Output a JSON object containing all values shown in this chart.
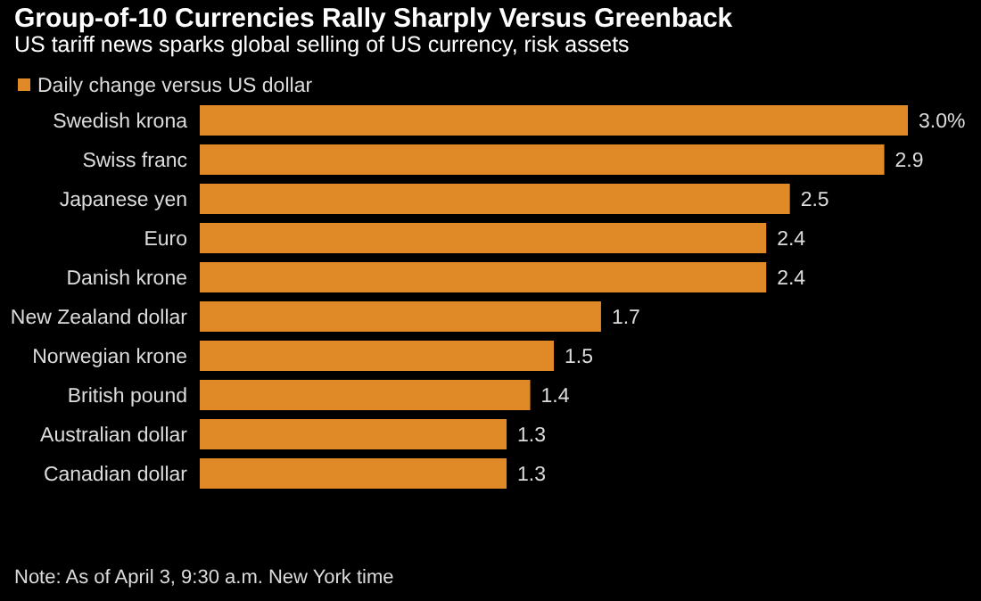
{
  "chart_data": {
    "type": "bar",
    "orientation": "horizontal",
    "title": "Group-of-10 Currencies Rally Sharply Versus Greenback",
    "subtitle": "US tariff news sparks global selling of US currency, risk assets",
    "categories": [
      "Swedish krona",
      "Swiss franc",
      "Japanese yen",
      "Euro",
      "Danish krone",
      "New Zealand dollar",
      "Norwegian krone",
      "British pound",
      "Australian dollar",
      "Canadian dollar"
    ],
    "series": [
      {
        "name": "Daily change versus US dollar",
        "color": "#df8a26",
        "values": [
          3.0,
          2.9,
          2.5,
          2.4,
          2.4,
          1.7,
          1.5,
          1.4,
          1.3,
          1.3
        ],
        "value_labels": [
          "3.0%",
          "2.9",
          "2.5",
          "2.4",
          "2.4",
          "1.7",
          "1.5",
          "1.4",
          "1.3",
          "1.3"
        ]
      }
    ],
    "legend": "top left",
    "tick_labels": "y",
    "annotations": [
      "Note: As of April 3, 9:30 a.m. New York time"
    ]
  }
}
